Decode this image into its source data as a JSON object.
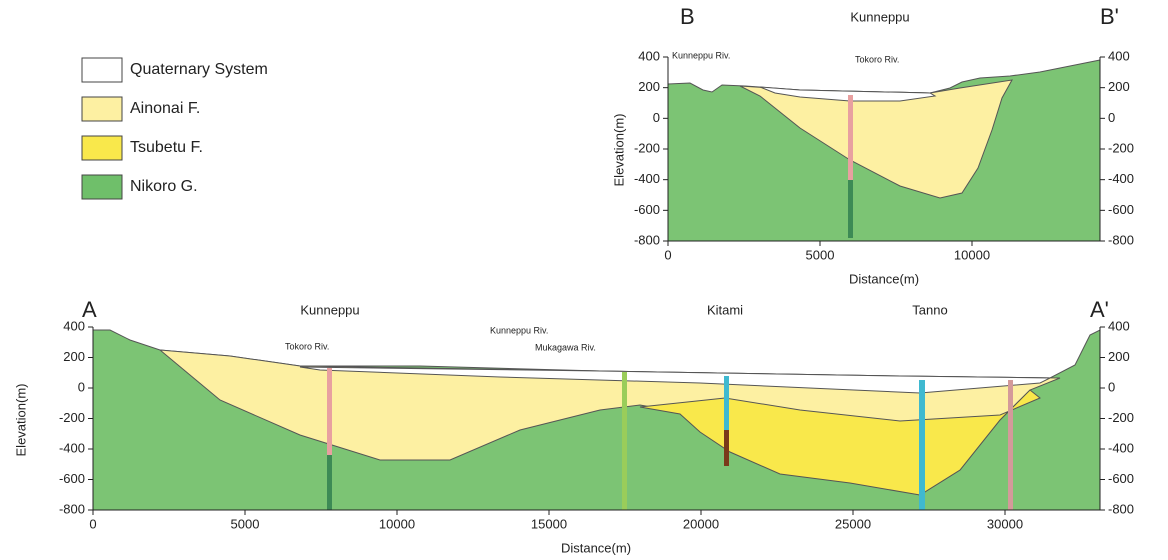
{
  "legend": [
    {
      "label": "Quaternary System"
    },
    {
      "label": "Ainonai F."
    },
    {
      "label": "Tsubetu F."
    },
    {
      "label": "Nikoro G."
    }
  ],
  "section_b": {
    "start_label": "B",
    "end_label": "B'",
    "place": "Kunneppu",
    "rivers": [
      "Kunneppu Riv.",
      "Tokoro Riv."
    ],
    "y_axis_label": "Elevation(m)",
    "x_axis_label": "Distance(m)",
    "yticks": [
      400,
      200,
      0,
      -200,
      -400,
      -600,
      -800
    ],
    "xticks": [
      0,
      5000,
      10000
    ]
  },
  "section_a": {
    "start_label": "A",
    "end_label": "A'",
    "places": [
      "Kunneppu",
      "Kitami",
      "Tanno"
    ],
    "rivers": [
      "Tokoro Riv.",
      "Kunneppu Riv.",
      "Mukagawa Riv."
    ],
    "y_axis_label": "Elevation(m)",
    "x_axis_label": "Distance(m)",
    "yticks": [
      400,
      200,
      0,
      -200,
      -400,
      -600,
      -800
    ],
    "xticks": [
      0,
      5000,
      10000,
      15000,
      20000,
      25000,
      30000
    ]
  }
}
